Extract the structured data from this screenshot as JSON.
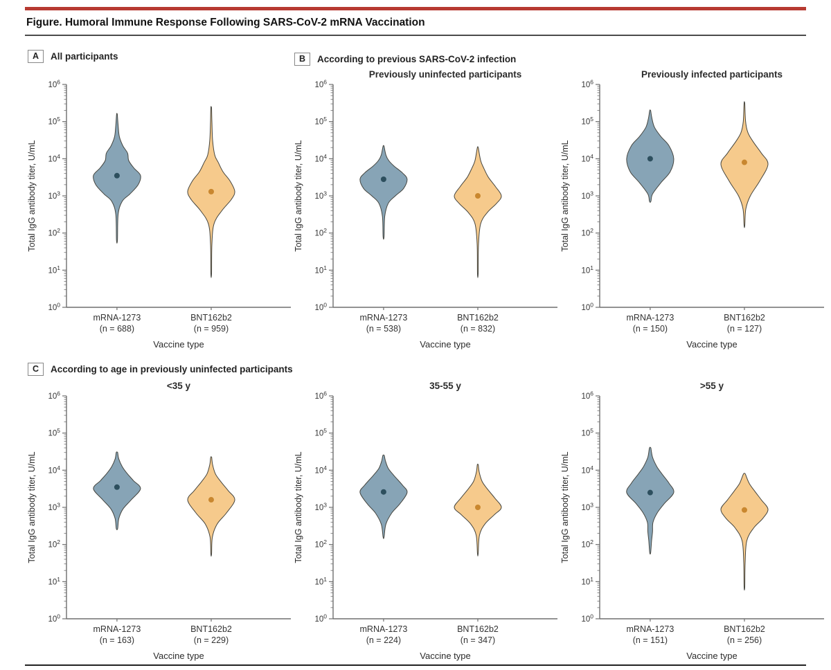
{
  "header": {
    "title": "Figure. Humoral Immune Response Following SARS-CoV-2 mRNA Vaccination"
  },
  "panel_a": {
    "label": "A",
    "caption": "All participants"
  },
  "panel_b": {
    "label": "B",
    "caption": "According to previous SARS-CoV-2 infection"
  },
  "panel_c": {
    "label": "C",
    "caption": "According to age in previously uninfected participants"
  },
  "colors": {
    "rule_red": "#b73a31",
    "rule_dark": "#4a4a4a",
    "axis": "#6e6e6e",
    "text": "#333333",
    "violin_stroke": "#45453f",
    "mRNA1273_fill": "#87a4b6",
    "mRNA1273_dot": "#2d4f5e",
    "BNT162b2_fill": "#f6ca8c",
    "BNT162b2_dot": "#c9872f"
  },
  "chart_data": [
    {
      "type": "violin",
      "panel": "A",
      "title": "",
      "ylabel": "Total IgG antibody titer, U/mL",
      "xlabel": "Vaccine type",
      "yscale": "log",
      "ylim": [
        1,
        1000000
      ],
      "ytick_exponents": [
        0,
        1,
        2,
        3,
        4,
        5,
        6
      ],
      "categories": [
        {
          "label": "mRNA-1273",
          "n": 688
        },
        {
          "label": "BNT162b2",
          "n": 959
        }
      ],
      "series": [
        {
          "name": "mRNA-1273",
          "color_key": "mRNA1273",
          "median": 3500,
          "range_approx": [
            65,
            160000
          ],
          "profile": [
            [
              1.81,
              0.02
            ],
            [
              2.5,
              0.05
            ],
            [
              2.85,
              0.22
            ],
            [
              3.05,
              0.55
            ],
            [
              3.3,
              0.9
            ],
            [
              3.55,
              1.0
            ],
            [
              3.75,
              0.72
            ],
            [
              3.95,
              0.5
            ],
            [
              4.15,
              0.45
            ],
            [
              4.35,
              0.25
            ],
            [
              4.6,
              0.1
            ],
            [
              4.9,
              0.05
            ],
            [
              5.2,
              0.015
            ]
          ]
        },
        {
          "name": "BNT162b2",
          "color_key": "BNT162b2",
          "median": 1300,
          "range_approx": [
            8,
            240000
          ],
          "profile": [
            [
              0.9,
              0.015
            ],
            [
              1.7,
              0.03
            ],
            [
              2.25,
              0.12
            ],
            [
              2.6,
              0.45
            ],
            [
              2.9,
              0.85
            ],
            [
              3.12,
              1.0
            ],
            [
              3.4,
              0.8
            ],
            [
              3.65,
              0.5
            ],
            [
              3.9,
              0.3
            ],
            [
              4.1,
              0.15
            ],
            [
              4.5,
              0.06
            ],
            [
              5.0,
              0.03
            ],
            [
              5.38,
              0.015
            ]
          ]
        }
      ]
    },
    {
      "type": "violin",
      "panel": "B",
      "title": "Previously uninfected participants",
      "ylabel": "Total IgG antibody titer, U/mL",
      "xlabel": "Vaccine type",
      "yscale": "log",
      "ylim": [
        1,
        1000000
      ],
      "ytick_exponents": [
        0,
        1,
        2,
        3,
        4,
        5,
        6
      ],
      "categories": [
        {
          "label": "mRNA-1273",
          "n": 538
        },
        {
          "label": "BNT162b2",
          "n": 832
        }
      ],
      "series": [
        {
          "name": "mRNA-1273",
          "color_key": "mRNA1273",
          "median": 2800,
          "range_approx": [
            80,
            22000
          ],
          "profile": [
            [
              1.9,
              0.02
            ],
            [
              2.45,
              0.05
            ],
            [
              2.8,
              0.2
            ],
            [
              3.0,
              0.5
            ],
            [
              3.2,
              0.85
            ],
            [
              3.45,
              1.0
            ],
            [
              3.62,
              0.8
            ],
            [
              3.8,
              0.45
            ],
            [
              3.95,
              0.22
            ],
            [
              4.1,
              0.1
            ],
            [
              4.34,
              0.02
            ]
          ]
        },
        {
          "name": "BNT162b2",
          "color_key": "BNT162b2",
          "median": 1000,
          "range_approx": [
            8,
            20000
          ],
          "profile": [
            [
              0.9,
              0.015
            ],
            [
              1.7,
              0.03
            ],
            [
              2.25,
              0.12
            ],
            [
              2.55,
              0.4
            ],
            [
              2.8,
              0.8
            ],
            [
              3.0,
              1.0
            ],
            [
              3.25,
              0.75
            ],
            [
              3.5,
              0.45
            ],
            [
              3.75,
              0.25
            ],
            [
              3.95,
              0.12
            ],
            [
              4.3,
              0.02
            ]
          ]
        }
      ]
    },
    {
      "type": "violin",
      "panel": "B",
      "title": "Previously infected participants",
      "ylabel": "Total IgG antibody titer, U/mL",
      "xlabel": "Vaccine type",
      "yscale": "log",
      "ylim": [
        1,
        1000000
      ],
      "ytick_exponents": [
        0,
        1,
        2,
        3,
        4,
        5,
        6
      ],
      "categories": [
        {
          "label": "mRNA-1273",
          "n": 150
        },
        {
          "label": "BNT162b2",
          "n": 127
        }
      ],
      "series": [
        {
          "name": "mRNA-1273",
          "color_key": "mRNA1273",
          "median": 10000,
          "range_approx": [
            700,
            200000
          ],
          "profile": [
            [
              2.85,
              0.03
            ],
            [
              3.05,
              0.1
            ],
            [
              3.35,
              0.45
            ],
            [
              3.65,
              0.85
            ],
            [
              4.0,
              1.0
            ],
            [
              4.35,
              0.8
            ],
            [
              4.6,
              0.45
            ],
            [
              4.85,
              0.18
            ],
            [
              5.1,
              0.07
            ],
            [
              5.3,
              0.02
            ]
          ]
        },
        {
          "name": "BNT162b2",
          "color_key": "BNT162b2",
          "median": 8000,
          "range_approx": [
            160,
            320000
          ],
          "profile": [
            [
              2.2,
              0.015
            ],
            [
              2.65,
              0.06
            ],
            [
              3.0,
              0.25
            ],
            [
              3.4,
              0.65
            ],
            [
              3.85,
              1.0
            ],
            [
              4.15,
              0.72
            ],
            [
              4.45,
              0.38
            ],
            [
              4.7,
              0.15
            ],
            [
              5.0,
              0.05
            ],
            [
              5.5,
              0.015
            ]
          ]
        }
      ]
    },
    {
      "type": "violin",
      "panel": "C",
      "title": "<35 y",
      "ylabel": "Total IgG antibody titer, U/mL",
      "xlabel": "Vaccine type",
      "yscale": "log",
      "ylim": [
        1,
        1000000
      ],
      "ytick_exponents": [
        0,
        1,
        2,
        3,
        4,
        5,
        6
      ],
      "categories": [
        {
          "label": "mRNA-1273",
          "n": 163
        },
        {
          "label": "BNT162b2",
          "n": 229
        }
      ],
      "series": [
        {
          "name": "mRNA-1273",
          "color_key": "mRNA1273",
          "median": 3500,
          "range_approx": [
            270,
            30000
          ],
          "profile": [
            [
              2.43,
              0.03
            ],
            [
              2.7,
              0.08
            ],
            [
              2.95,
              0.25
            ],
            [
              3.2,
              0.6
            ],
            [
              3.5,
              1.0
            ],
            [
              3.72,
              0.7
            ],
            [
              3.92,
              0.42
            ],
            [
              4.1,
              0.22
            ],
            [
              4.3,
              0.08
            ],
            [
              4.48,
              0.03
            ]
          ]
        },
        {
          "name": "BNT162b2",
          "color_key": "BNT162b2",
          "median": 1600,
          "range_approx": [
            55,
            22000
          ],
          "profile": [
            [
              1.74,
              0.015
            ],
            [
              2.2,
              0.05
            ],
            [
              2.55,
              0.25
            ],
            [
              2.85,
              0.65
            ],
            [
              3.2,
              1.0
            ],
            [
              3.45,
              0.72
            ],
            [
              3.7,
              0.4
            ],
            [
              3.9,
              0.18
            ],
            [
              4.15,
              0.06
            ],
            [
              4.35,
              0.02
            ]
          ]
        }
      ]
    },
    {
      "type": "violin",
      "panel": "C",
      "title": "35-55 y",
      "ylabel": "Total IgG antibody titer, U/mL",
      "xlabel": "Vaccine type",
      "yscale": "log",
      "ylim": [
        1,
        1000000
      ],
      "ytick_exponents": [
        0,
        1,
        2,
        3,
        4,
        5,
        6
      ],
      "categories": [
        {
          "label": "mRNA-1273",
          "n": 224
        },
        {
          "label": "BNT162b2",
          "n": 347
        }
      ],
      "series": [
        {
          "name": "mRNA-1273",
          "color_key": "mRNA1273",
          "median": 2600,
          "range_approx": [
            160,
            25000
          ],
          "profile": [
            [
              2.2,
              0.02
            ],
            [
              2.55,
              0.1
            ],
            [
              2.85,
              0.35
            ],
            [
              3.1,
              0.7
            ],
            [
              3.4,
              1.0
            ],
            [
              3.6,
              0.8
            ],
            [
              3.85,
              0.45
            ],
            [
              4.05,
              0.2
            ],
            [
              4.25,
              0.08
            ],
            [
              4.4,
              0.03
            ]
          ]
        },
        {
          "name": "BNT162b2",
          "color_key": "BNT162b2",
          "median": 1000,
          "range_approx": [
            56,
            14000
          ],
          "profile": [
            [
              1.75,
              0.015
            ],
            [
              2.25,
              0.07
            ],
            [
              2.55,
              0.3
            ],
            [
              2.8,
              0.7
            ],
            [
              3.0,
              1.0
            ],
            [
              3.25,
              0.72
            ],
            [
              3.5,
              0.4
            ],
            [
              3.7,
              0.18
            ],
            [
              3.95,
              0.06
            ],
            [
              4.15,
              0.02
            ]
          ]
        }
      ]
    },
    {
      "type": "violin",
      "panel": "C",
      "title": ">55 y",
      "ylabel": "Total IgG antibody titer, U/mL",
      "xlabel": "Vaccine type",
      "yscale": "log",
      "ylim": [
        1,
        1000000
      ],
      "ytick_exponents": [
        0,
        1,
        2,
        3,
        4,
        5,
        6
      ],
      "categories": [
        {
          "label": "mRNA-1273",
          "n": 151
        },
        {
          "label": "BNT162b2",
          "n": 256
        }
      ],
      "series": [
        {
          "name": "mRNA-1273",
          "color_key": "mRNA1273",
          "median": 2500,
          "range_approx": [
            60,
            40000
          ],
          "profile": [
            [
              1.78,
              0.02
            ],
            [
              2.1,
              0.06
            ],
            [
              2.35,
              0.1
            ],
            [
              2.6,
              0.12
            ],
            [
              2.85,
              0.3
            ],
            [
              3.1,
              0.6
            ],
            [
              3.4,
              1.0
            ],
            [
              3.65,
              0.8
            ],
            [
              3.9,
              0.5
            ],
            [
              4.1,
              0.28
            ],
            [
              4.35,
              0.1
            ],
            [
              4.6,
              0.03
            ]
          ]
        },
        {
          "name": "BNT162b2",
          "color_key": "BNT162b2",
          "median": 850,
          "range_approx": [
            7,
            8000
          ],
          "profile": [
            [
              0.85,
              0.015
            ],
            [
              1.5,
              0.03
            ],
            [
              2.1,
              0.1
            ],
            [
              2.45,
              0.4
            ],
            [
              2.7,
              0.78
            ],
            [
              2.95,
              1.0
            ],
            [
              3.2,
              0.72
            ],
            [
              3.45,
              0.42
            ],
            [
              3.65,
              0.2
            ],
            [
              3.9,
              0.04
            ]
          ]
        }
      ]
    }
  ]
}
